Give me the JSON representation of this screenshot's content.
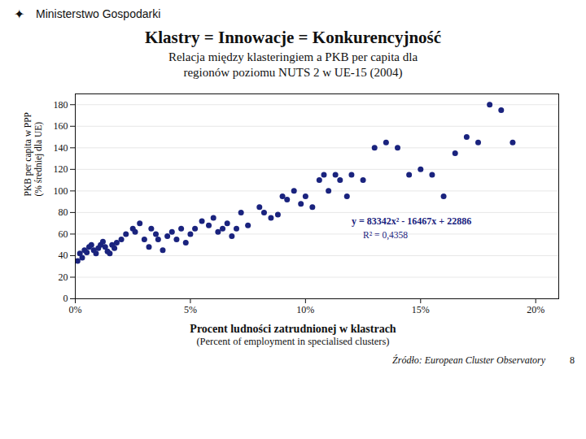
{
  "chart_data": {
    "type": "scatter",
    "header_mark": "✦",
    "header": "Ministerstwo Gospodarki",
    "title": "Klastry = Innowacje = Konkurencyjność",
    "subtitle": [
      "Relacja między klasteringiem a PKB per capita dla",
      "regionów poziomu NUTS 2 w UE-15 (2004)"
    ],
    "ylabel": "PKB per capita w PPP\n(% średniej dla UE)",
    "xlabel": [
      "Procent ludności zatrudnionej w klastrach",
      "(Percent of employment in specialised clusters)"
    ],
    "x": [
      0.001,
      0.002,
      0.003,
      0.004,
      0.005,
      0.006,
      0.007,
      0.008,
      0.009,
      0.01,
      0.011,
      0.012,
      0.013,
      0.014,
      0.015,
      0.016,
      0.017,
      0.018,
      0.02,
      0.022,
      0.025,
      0.026,
      0.028,
      0.03,
      0.032,
      0.033,
      0.035,
      0.036,
      0.038,
      0.04,
      0.042,
      0.044,
      0.046,
      0.048,
      0.05,
      0.052,
      0.055,
      0.058,
      0.06,
      0.062,
      0.064,
      0.066,
      0.068,
      0.07,
      0.072,
      0.075,
      0.08,
      0.082,
      0.085,
      0.088,
      0.09,
      0.092,
      0.095,
      0.098,
      0.1,
      0.103,
      0.106,
      0.108,
      0.11,
      0.113,
      0.115,
      0.118,
      0.12,
      0.125,
      0.13,
      0.135,
      0.14,
      0.145,
      0.15,
      0.155,
      0.16,
      0.165,
      0.17,
      0.175,
      0.18,
      0.185,
      0.19
    ],
    "values": [
      35,
      42,
      38,
      45,
      43,
      48,
      50,
      45,
      42,
      47,
      50,
      53,
      48,
      44,
      42,
      50,
      47,
      52,
      55,
      60,
      65,
      62,
      70,
      55,
      48,
      65,
      60,
      55,
      45,
      58,
      62,
      55,
      65,
      52,
      60,
      65,
      72,
      68,
      75,
      62,
      65,
      70,
      58,
      65,
      80,
      68,
      85,
      80,
      75,
      78,
      95,
      92,
      100,
      88,
      95,
      85,
      110,
      115,
      100,
      115,
      110,
      95,
      115,
      110,
      140,
      145,
      140,
      115,
      120,
      115,
      95,
      135,
      150,
      145,
      180,
      175,
      145
    ],
    "color": "#1A237E",
    "annotations": [
      {
        "text": "y = 83342x² - 16467x + 22886",
        "x": 0.12,
        "y": 72
      },
      {
        "text": "R² = 0,4358",
        "x": 0.125,
        "y": 59
      }
    ],
    "xlim": [
      0,
      0.21
    ],
    "xticks": [
      {
        "value": 0.0,
        "label": "0%"
      },
      {
        "value": 0.05,
        "label": "5%"
      },
      {
        "value": 0.1,
        "label": "10%"
      },
      {
        "value": 0.15,
        "label": "15%"
      },
      {
        "value": 0.2,
        "label": "20%"
      }
    ],
    "ylim": [
      0,
      190
    ],
    "yticks": [
      0,
      20,
      40,
      60,
      80,
      100,
      120,
      140,
      160,
      180
    ],
    "grid": "y",
    "source": "Źródło: European Cluster Observatory",
    "page": "8"
  }
}
